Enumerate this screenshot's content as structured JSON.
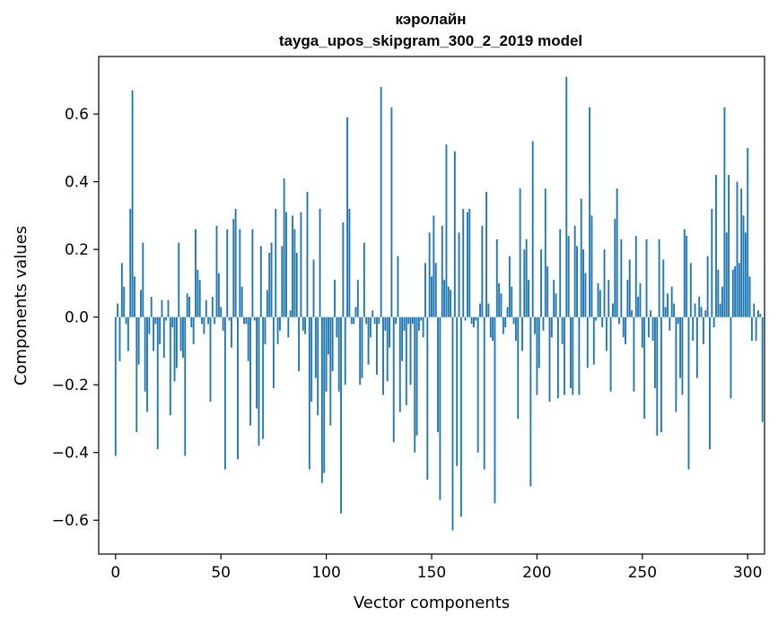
{
  "chart_data": {
    "type": "bar",
    "title": "кэролайн",
    "subtitle": "tayga_upos_skipgram_300_2_2019 model",
    "xlabel": "Vector components",
    "ylabel": "Components values",
    "xlim": [
      -8,
      308
    ],
    "ylim": [
      -0.7,
      0.77
    ],
    "xticks": [
      0,
      50,
      100,
      150,
      200,
      250,
      300
    ],
    "yticks": [
      -0.6,
      -0.4,
      -0.2,
      0.0,
      0.2,
      0.4,
      0.6
    ],
    "ytick_labels": [
      "−0.6",
      "−0.4",
      "−0.2",
      "0.0",
      "0.2",
      "0.4",
      "0.6"
    ],
    "bar_color": "#1f77b4",
    "values": [
      -0.41,
      0.04,
      -0.13,
      0.16,
      0.09,
      -0.02,
      -0.1,
      0.32,
      0.67,
      0.12,
      -0.34,
      -0.14,
      0.08,
      0.22,
      -0.22,
      -0.28,
      -0.05,
      0.06,
      -0.1,
      -0.02,
      -0.39,
      -0.08,
      0.05,
      -0.12,
      -0.01,
      0.05,
      -0.29,
      -0.03,
      -0.19,
      -0.15,
      0.22,
      -0.1,
      -0.12,
      -0.41,
      0.07,
      0.06,
      -0.03,
      -0.08,
      0.26,
      0.14,
      0.11,
      -0.02,
      -0.05,
      0.05,
      -0.02,
      -0.25,
      0.06,
      -0.02,
      0.27,
      0.13,
      0.03,
      -0.04,
      -0.45,
      0.26,
      -0.01,
      -0.09,
      0.29,
      0.32,
      -0.42,
      0.26,
      0.09,
      -0.02,
      -0.02,
      -0.13,
      -0.32,
      0.26,
      -0.01,
      -0.27,
      -0.38,
      0.21,
      -0.36,
      -0.08,
      0.08,
      0.19,
      0.22,
      -0.21,
      0.32,
      -0.08,
      -0.04,
      0.21,
      0.41,
      0.31,
      -0.06,
      0.02,
      0.3,
      0.26,
      0.19,
      -0.16,
      0.31,
      -0.04,
      -0.05,
      0.37,
      -0.45,
      -0.25,
      0.17,
      -0.18,
      -0.29,
      0.32,
      -0.49,
      -0.46,
      -0.22,
      -0.11,
      -0.32,
      -0.16,
      0.11,
      -0.06,
      -0.22,
      -0.58,
      0.28,
      -0.2,
      0.59,
      0.32,
      -0.02,
      -0.02,
      0.03,
      0.11,
      -0.2,
      -0.18,
      0.22,
      -0.02,
      -0.14,
      -0.06,
      0.02,
      -0.02,
      -0.17,
      -0.02,
      0.68,
      -0.23,
      -0.04,
      -0.19,
      -0.09,
      0.62,
      -0.37,
      -0.02,
      0.18,
      -0.28,
      -0.13,
      -0.04,
      -0.26,
      -0.02,
      -0.2,
      -0.02,
      -0.4,
      -0.35,
      -0.04,
      -0.01,
      -0.06,
      0.16,
      -0.48,
      0.25,
      0.12,
      0.3,
      0.16,
      -0.34,
      -0.54,
      0.27,
      0.11,
      0.51,
      0.09,
      0.08,
      -0.63,
      0.49,
      -0.44,
      0.25,
      -0.59,
      0.32,
      -0.01,
      0.31,
      0.32,
      -0.02,
      -0.03,
      -0.01,
      -0.4,
      0.04,
      0.27,
      -0.45,
      0.37,
      0.04,
      -0.06,
      -0.07,
      -0.55,
      0.23,
      0.1,
      0.07,
      -0.05,
      -0.03,
      0.03,
      0.18,
      0.09,
      -0.02,
      -0.07,
      -0.3,
      0.38,
      -0.1,
      0.2,
      0.23,
      0.11,
      -0.5,
      0.52,
      -0.05,
      -0.23,
      -0.15,
      0.2,
      -0.04,
      0.38,
      0.15,
      -0.25,
      -0.06,
      0.11,
      0.07,
      -0.24,
      0.26,
      -0.08,
      -0.23,
      0.71,
      0.24,
      -0.21,
      -0.23,
      0.27,
      0.21,
      -0.23,
      0.35,
      0.2,
      0.13,
      -0.15,
      0.62,
      0.3,
      -0.14,
      -0.01,
      0.1,
      0.08,
      -0.03,
      0.2,
      -0.1,
      0.11,
      -0.22,
      0.04,
      0.29,
      0.38,
      -0.02,
      0.23,
      -0.06,
      -0.08,
      0.11,
      0.17,
      0.02,
      -0.22,
      0.24,
      0.06,
      0.1,
      -0.09,
      -0.3,
      0.23,
      -0.06,
      0.02,
      -0.07,
      -0.21,
      -0.35,
      0.23,
      -0.34,
      0.17,
      0.03,
      0.07,
      -0.04,
      0.09,
      0.04,
      -0.28,
      -0.02,
      -0.18,
      -0.23,
      0.26,
      0.24,
      -0.45,
      0.16,
      -0.07,
      0.04,
      -0.18,
      0.06,
      0.03,
      -0.08,
      0.02,
      0.18,
      -0.39,
      0.32,
      -0.03,
      0.42,
      0.14,
      0.04,
      0.09,
      0.62,
      0.25,
      0.42,
      -0.24,
      0.14,
      0.15,
      0.4,
      0.16,
      0.38,
      0.3,
      0.25,
      0.5,
      0.12,
      -0.07,
      0.04,
      -0.07,
      0.02,
      0.01,
      -0.31
    ]
  }
}
